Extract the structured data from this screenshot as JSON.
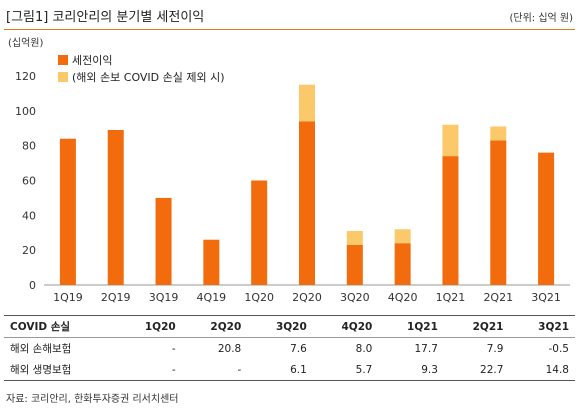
{
  "header": {
    "title": "[그림1]   코리안리의 분기별 세전이익",
    "unit": "(단위: 십억 원)"
  },
  "chart_data": {
    "type": "bar",
    "ylabel": "(십억원)",
    "ylim": [
      0,
      120
    ],
    "yticks": [
      0,
      20,
      40,
      60,
      80,
      100,
      120
    ],
    "categories": [
      "1Q19",
      "2Q19",
      "3Q19",
      "4Q19",
      "1Q20",
      "2Q20",
      "3Q20",
      "4Q20",
      "1Q21",
      "2Q21",
      "3Q21"
    ],
    "stacked": true,
    "legend_position": "top-left",
    "grid": false,
    "series": [
      {
        "name": "세전이익",
        "color": "#f26b0c",
        "values": [
          84,
          89,
          50,
          26,
          60,
          94,
          23,
          24,
          74,
          83,
          76
        ]
      },
      {
        "name": "(해외 손보 COVID 손실 제외 시)",
        "color": "#fcc96a",
        "values": [
          0,
          0,
          0,
          0,
          0,
          21,
          8,
          8,
          18,
          8,
          0
        ]
      }
    ]
  },
  "table": {
    "headers": [
      "COVID 손실",
      "1Q20",
      "2Q20",
      "3Q20",
      "4Q20",
      "1Q21",
      "2Q21",
      "3Q21"
    ],
    "rows": [
      [
        "해외 손해보험",
        "-",
        "20.8",
        "7.6",
        "8.0",
        "17.7",
        "7.9",
        "-0.5"
      ],
      [
        "해외 생명보험",
        "-",
        "-",
        "6.1",
        "5.7",
        "9.3",
        "22.7",
        "14.8"
      ]
    ]
  },
  "source": "자료: 코리안리, 한화투자증권 리서치센터",
  "colors": {
    "accent": "#e07a1f",
    "bar": "#f26b0c",
    "bar_light": "#fcc96a"
  }
}
